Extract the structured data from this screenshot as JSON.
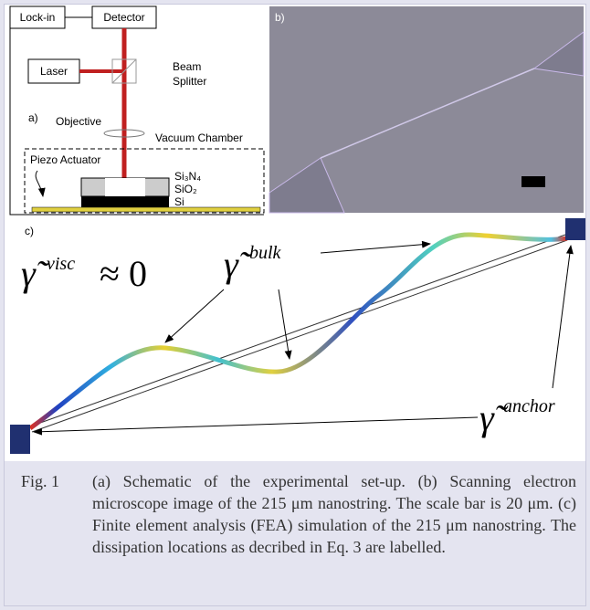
{
  "panel_a": {
    "label": "a)",
    "lock_in": "Lock-in",
    "detector": "Detector",
    "laser": "Laser",
    "beam_splitter": [
      "Beam",
      "Splitter"
    ],
    "objective": "Objective",
    "vacuum_chamber": "Vacuum Chamber",
    "piezo_actuator": "Piezo Actuator",
    "layers": [
      "Si₃N₄",
      "SiO₂",
      "Si"
    ]
  },
  "panel_b": {
    "label": "b)"
  },
  "panel_c": {
    "label": "c)",
    "visc": {
      "symbol": "γ̃",
      "superscript": "visc",
      "relation": "≈ 0"
    },
    "bulk": {
      "symbol": "γ̃",
      "superscript": "bulk"
    },
    "anchor": {
      "symbol": "γ̃",
      "superscript": "anchor"
    }
  },
  "caption": {
    "label": "Fig. 1",
    "text": "(a) Schematic of the experimental set-up. (b) Scanning electron microscope image of the 215 μm nanostring. The scale bar is 20 μm. (c) Finite element analysis (FEA) simulation of the 215 μm nanostring. The dissipation locations as decribed in Eq. 3 are labelled."
  }
}
